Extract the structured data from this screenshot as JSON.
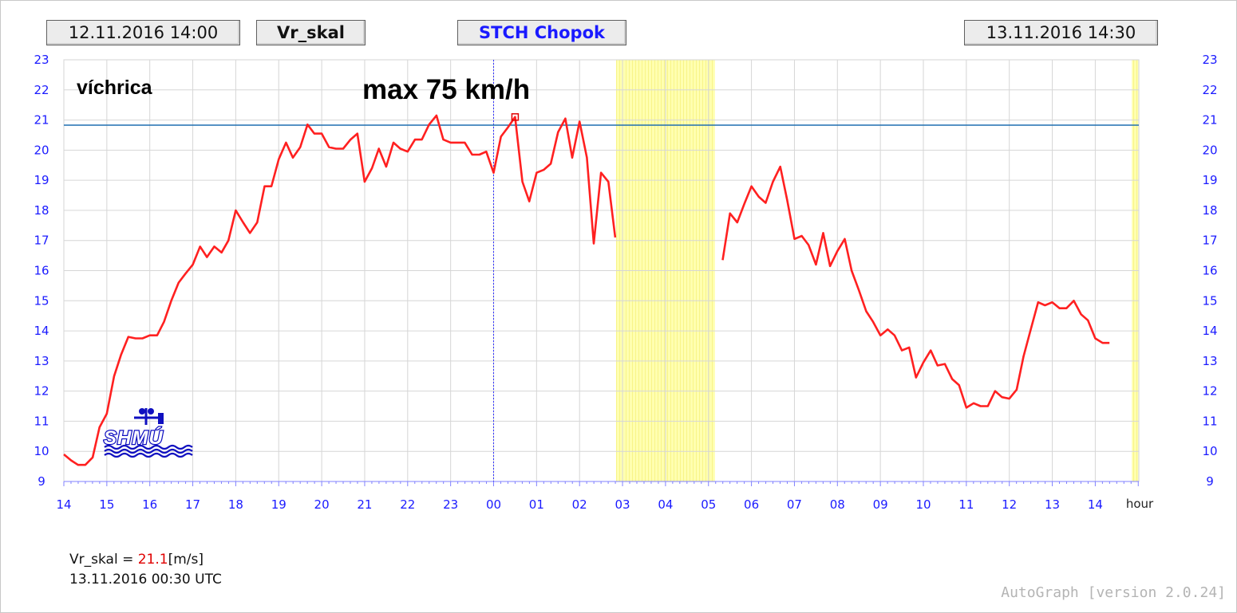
{
  "header": {
    "start_time": "12.11.2016 14:00",
    "variable": "Vr_skal",
    "station": "STCH Chopok",
    "end_time": "13.11.2016 14:30"
  },
  "annotations": {
    "category": "víchrica",
    "max_label": "max 75 km/h"
  },
  "readout": {
    "variable": "Vr_skal",
    "equals": " = ",
    "value": "21.1",
    "unit": "[m/s]",
    "timestamp": "13.11.2016 00:30 UTC"
  },
  "logo_text": "SHMÚ",
  "footer": "AutoGraph [version 2.0.24]",
  "colors": {
    "series": "#ff2020",
    "threshold": "#1f6fb0",
    "axis_labels": "#1a1aff",
    "shading": "#ffff99",
    "logo": "#1010c0"
  },
  "chart_data": {
    "type": "line",
    "x_unit_label": "hour",
    "x_ticks": [
      "14",
      "15",
      "16",
      "17",
      "18",
      "19",
      "20",
      "21",
      "22",
      "23",
      "00",
      "01",
      "02",
      "03",
      "04",
      "05",
      "06",
      "07",
      "08",
      "09",
      "10",
      "11",
      "12",
      "13",
      "14"
    ],
    "y_ticks": [
      9,
      10,
      11,
      12,
      13,
      14,
      15,
      16,
      17,
      18,
      19,
      20,
      21,
      22,
      23
    ],
    "ylim": [
      9,
      23
    ],
    "xlim_hours": [
      0,
      25.1
    ],
    "grid": true,
    "threshold": 20.83,
    "shaded_ranges_hours": [
      [
        12.85,
        15.15
      ],
      [
        24.85,
        25.0
      ]
    ],
    "midnight_line_hour": 10,
    "max_marker": {
      "hour": 10.5,
      "value": 21.1
    },
    "series": [
      {
        "segments": [
          [
            [
              0.0,
              9.9
            ],
            [
              0.17,
              9.7
            ],
            [
              0.33,
              9.55
            ],
            [
              0.5,
              9.55
            ],
            [
              0.67,
              9.8
            ],
            [
              0.83,
              10.8
            ],
            [
              1.0,
              11.25
            ],
            [
              1.17,
              12.5
            ],
            [
              1.33,
              13.2
            ],
            [
              1.5,
              13.8
            ],
            [
              1.67,
              13.75
            ],
            [
              1.83,
              13.75
            ],
            [
              2.0,
              13.85
            ],
            [
              2.17,
              13.85
            ],
            [
              2.33,
              14.3
            ],
            [
              2.5,
              15.0
            ],
            [
              2.67,
              15.6
            ],
            [
              2.83,
              15.9
            ],
            [
              3.0,
              16.2
            ],
            [
              3.17,
              16.8
            ],
            [
              3.33,
              16.45
            ],
            [
              3.5,
              16.8
            ],
            [
              3.67,
              16.6
            ],
            [
              3.83,
              17.0
            ],
            [
              4.0,
              18.0
            ],
            [
              4.17,
              17.6
            ],
            [
              4.33,
              17.25
            ],
            [
              4.5,
              17.6
            ],
            [
              4.67,
              18.8
            ],
            [
              4.83,
              18.8
            ],
            [
              5.0,
              19.7
            ],
            [
              5.17,
              20.25
            ],
            [
              5.33,
              19.75
            ],
            [
              5.5,
              20.1
            ],
            [
              5.67,
              20.85
            ],
            [
              5.83,
              20.55
            ],
            [
              6.0,
              20.55
            ],
            [
              6.17,
              20.1
            ],
            [
              6.33,
              20.05
            ],
            [
              6.5,
              20.05
            ],
            [
              6.67,
              20.35
            ],
            [
              6.83,
              20.55
            ],
            [
              7.0,
              18.95
            ],
            [
              7.17,
              19.4
            ],
            [
              7.33,
              20.05
            ],
            [
              7.5,
              19.45
            ],
            [
              7.67,
              20.25
            ],
            [
              7.83,
              20.05
            ],
            [
              8.0,
              19.95
            ],
            [
              8.17,
              20.35
            ],
            [
              8.33,
              20.35
            ],
            [
              8.5,
              20.85
            ],
            [
              8.67,
              21.15
            ],
            [
              8.83,
              20.35
            ],
            [
              9.0,
              20.25
            ],
            [
              9.17,
              20.25
            ],
            [
              9.33,
              20.25
            ],
            [
              9.5,
              19.85
            ],
            [
              9.67,
              19.85
            ],
            [
              9.83,
              19.95
            ],
            [
              10.0,
              19.25
            ],
            [
              10.17,
              20.45
            ],
            [
              10.33,
              20.75
            ],
            [
              10.5,
              21.1
            ],
            [
              10.67,
              18.95
            ],
            [
              10.83,
              18.3
            ],
            [
              11.0,
              19.25
            ],
            [
              11.17,
              19.35
            ],
            [
              11.33,
              19.55
            ],
            [
              11.5,
              20.6
            ],
            [
              11.67,
              21.05
            ],
            [
              11.83,
              19.75
            ],
            [
              12.0,
              20.95
            ],
            [
              12.17,
              19.75
            ],
            [
              12.33,
              16.9
            ],
            [
              12.5,
              19.25
            ],
            [
              12.67,
              18.95
            ],
            [
              12.83,
              17.1
            ]
          ],
          [
            [
              15.33,
              16.35
            ],
            [
              15.5,
              17.9
            ],
            [
              15.67,
              17.6
            ],
            [
              15.83,
              18.2
            ],
            [
              16.0,
              18.8
            ],
            [
              16.17,
              18.45
            ],
            [
              16.33,
              18.25
            ],
            [
              16.5,
              18.95
            ],
            [
              16.67,
              19.45
            ],
            [
              16.83,
              18.35
            ],
            [
              17.0,
              17.05
            ],
            [
              17.17,
              17.15
            ],
            [
              17.33,
              16.85
            ],
            [
              17.5,
              16.2
            ],
            [
              17.67,
              17.25
            ],
            [
              17.83,
              16.15
            ],
            [
              18.0,
              16.65
            ],
            [
              18.17,
              17.05
            ],
            [
              18.33,
              16.0
            ],
            [
              18.5,
              15.35
            ],
            [
              18.67,
              14.65
            ],
            [
              18.83,
              14.3
            ],
            [
              19.0,
              13.85
            ],
            [
              19.17,
              14.05
            ],
            [
              19.33,
              13.85
            ],
            [
              19.5,
              13.35
            ],
            [
              19.67,
              13.45
            ],
            [
              19.83,
              12.45
            ],
            [
              20.0,
              12.95
            ],
            [
              20.17,
              13.35
            ],
            [
              20.33,
              12.85
            ],
            [
              20.5,
              12.9
            ],
            [
              20.67,
              12.4
            ],
            [
              20.83,
              12.2
            ],
            [
              21.0,
              11.45
            ],
            [
              21.17,
              11.6
            ],
            [
              21.33,
              11.5
            ],
            [
              21.5,
              11.5
            ],
            [
              21.67,
              12.0
            ],
            [
              21.83,
              11.8
            ],
            [
              22.0,
              11.75
            ],
            [
              22.17,
              12.05
            ],
            [
              22.33,
              13.15
            ],
            [
              22.5,
              14.05
            ],
            [
              22.67,
              14.95
            ],
            [
              22.83,
              14.85
            ],
            [
              23.0,
              14.95
            ],
            [
              23.17,
              14.75
            ],
            [
              23.33,
              14.75
            ],
            [
              23.5,
              15.0
            ],
            [
              23.67,
              14.55
            ],
            [
              23.83,
              14.35
            ],
            [
              24.0,
              13.75
            ],
            [
              24.17,
              13.6
            ],
            [
              24.33,
              13.6
            ]
          ]
        ]
      }
    ]
  }
}
